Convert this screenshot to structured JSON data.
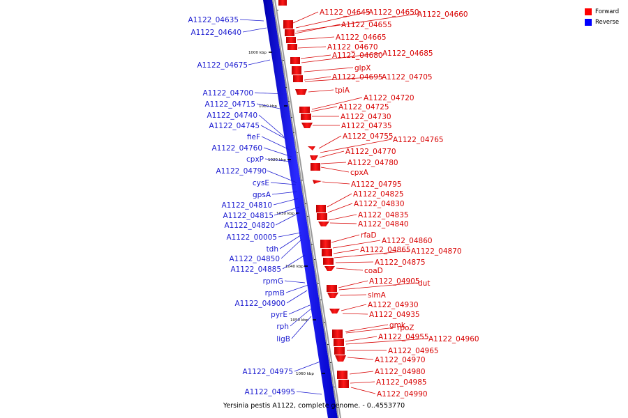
{
  "colors": {
    "forward": "#ff0000",
    "reverse": "#0000ff",
    "backbone": "#9a9a9a"
  },
  "legend": [
    {
      "label": "Forward",
      "color": "#ff0000"
    },
    {
      "label": "Reverse",
      "color": "#0000ff"
    }
  ],
  "caption": "Yersinia pestis A1122, complete genome. - 0..4553770",
  "ticks": [
    "1000 kbp",
    "1010 kbp",
    "1020 kbp",
    "1030 kbp",
    "1040 kbp",
    "1050 kbp",
    "1060 kbp"
  ],
  "forward_labels": [
    "A1122_04645",
    "A1122_04650",
    "A1122_04660",
    "A1122_04655",
    "A1122_04665",
    "A1122_04670",
    "A1122_04680",
    "A1122_04685",
    "glpX",
    "A1122_04695",
    "A1122_04705",
    "tpiA",
    "A1122_04720",
    "A1122_04725",
    "A1122_04730",
    "A1122_04735",
    "A1122_04755",
    "A1122_04765",
    "A1122_04770",
    "A1122_04780",
    "cpxA",
    "A1122_04795",
    "A1122_04825",
    "A1122_04830",
    "A1122_04835",
    "A1122_04840",
    "rfaD",
    "A1122_04860",
    "A1122_04865",
    "A1122_04870",
    "A1122_04875",
    "coaD",
    "A1122_04905",
    "dut",
    "slmA",
    "A1122_04930",
    "A1122_04935",
    "gmk",
    "rpoZ",
    "A1122_04955",
    "A1122_04960",
    "A1122_04965",
    "A1122_04970",
    "A1122_04980",
    "A1122_04985",
    "A1122_04990"
  ],
  "reverse_labels": [
    "A1122_04635",
    "A1122_04640",
    "A1122_04675",
    "A1122_04700",
    "A1122_04715",
    "A1122_04740",
    "A1122_04745",
    "fieF",
    "A1122_04760",
    "cpxP",
    "A1122_04790",
    "cysE",
    "gpsA",
    "A1122_04810",
    "A1122_04815",
    "A1122_04820",
    "A1122_00005",
    "tdh",
    "A1122_04850",
    "A1122_04885",
    "rpmG",
    "rpmB",
    "A1122_04900",
    "pyrE",
    "rph",
    "ligB",
    "A1122_04975",
    "A1122_04995"
  ]
}
